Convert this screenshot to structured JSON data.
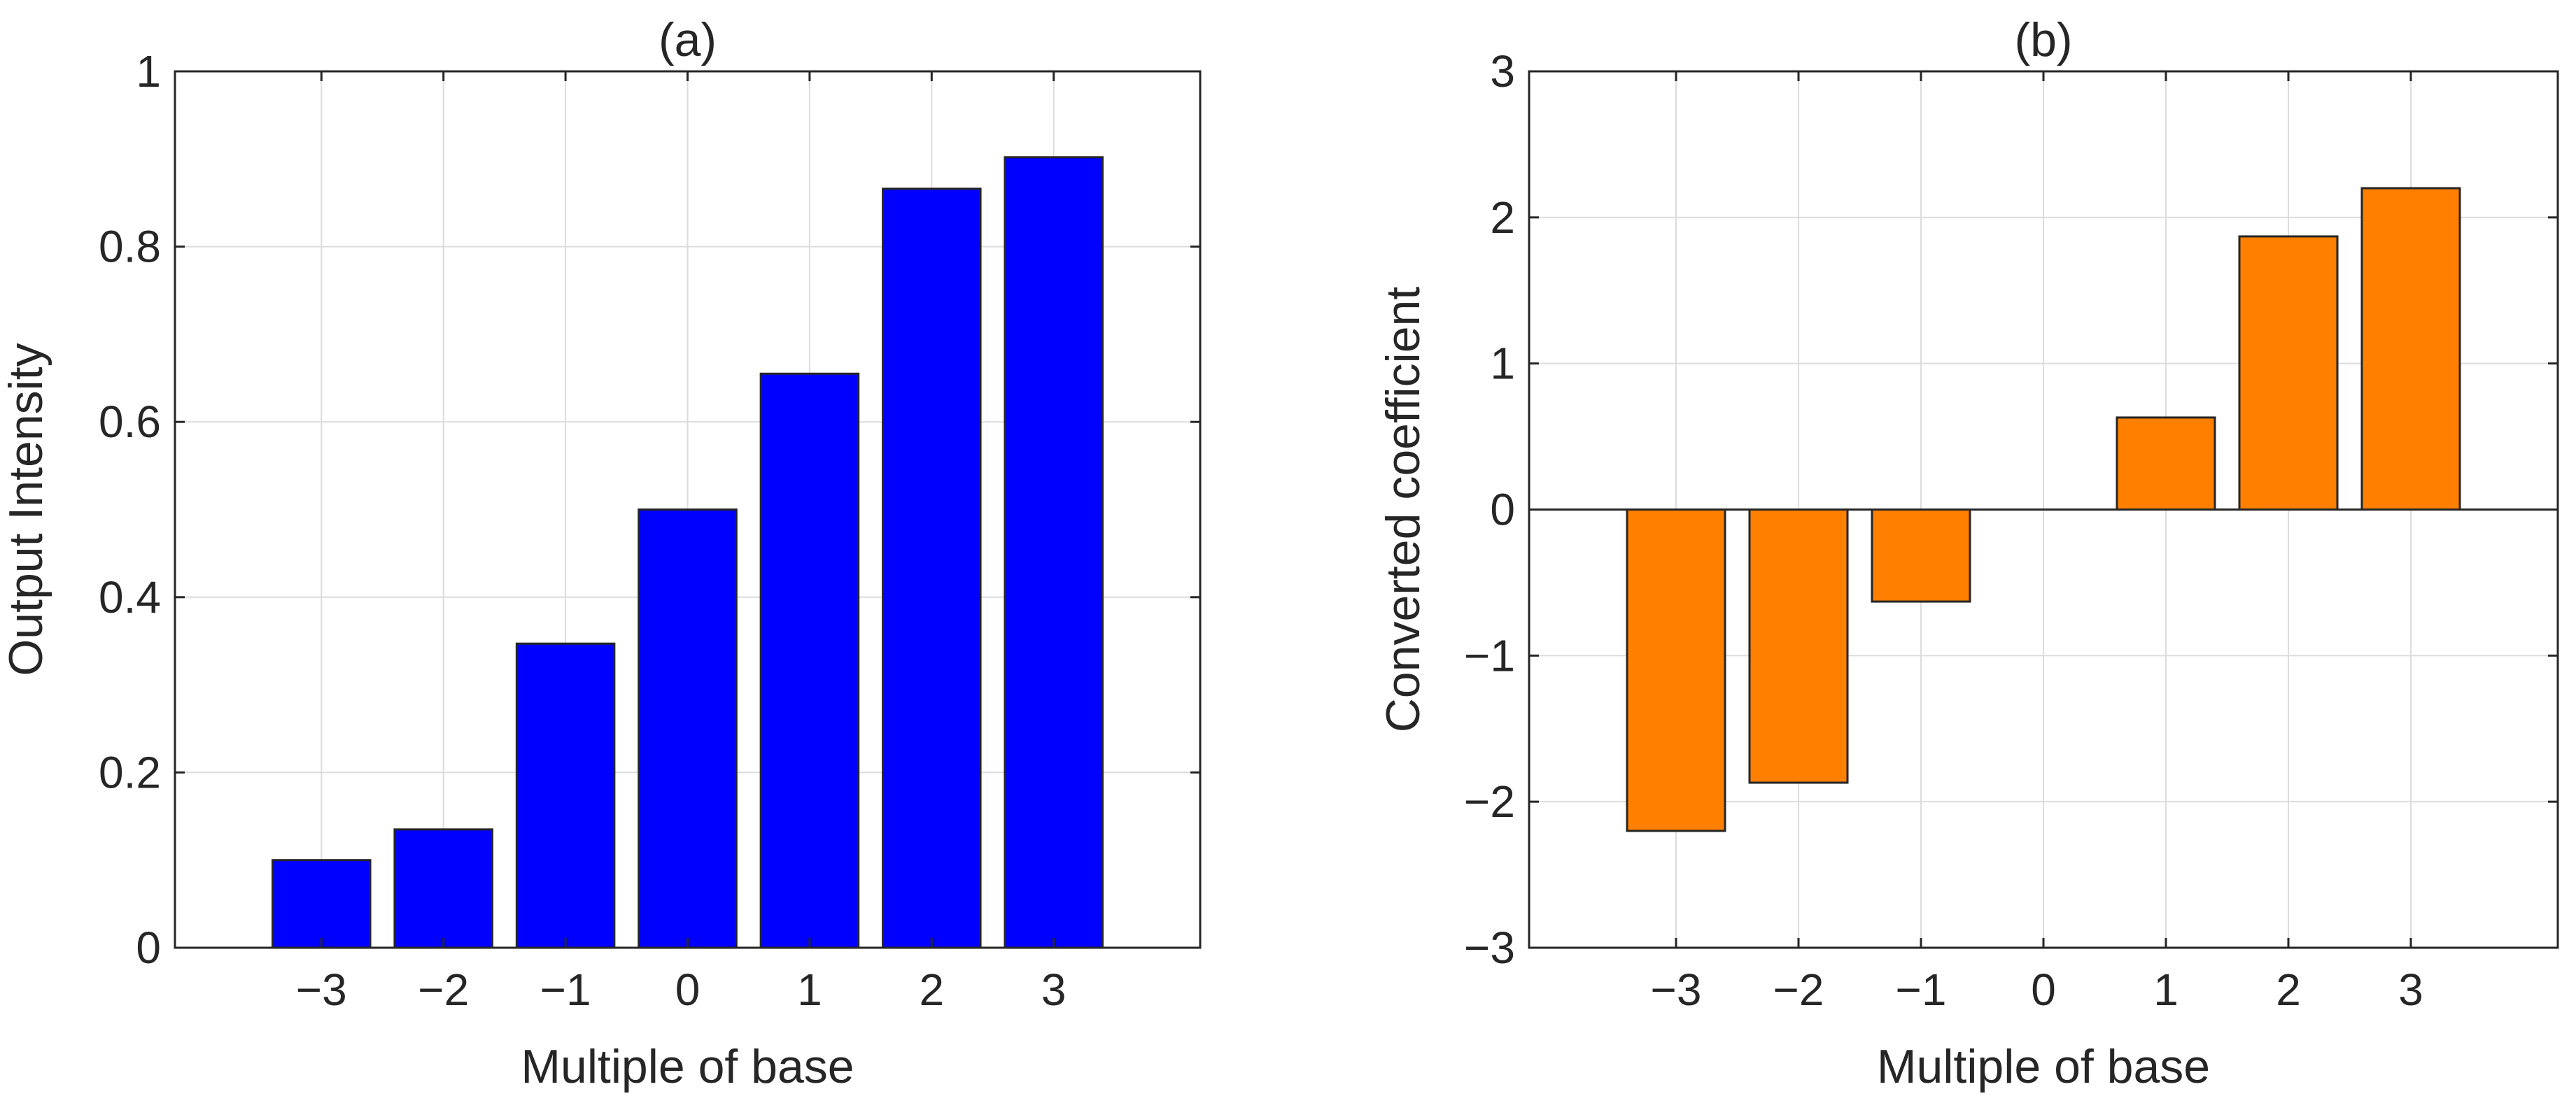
{
  "chart_data": [
    {
      "type": "bar",
      "title": "(a)",
      "xlabel": "Multiple of base",
      "ylabel": "Output Intensity",
      "categories": [
        "−3",
        "−2",
        "−1",
        "0",
        "1",
        "2",
        "3"
      ],
      "x": [
        -3,
        -2,
        -1,
        0,
        1,
        2,
        3
      ],
      "values": [
        0.1,
        0.135,
        0.347,
        0.5,
        0.655,
        0.866,
        0.902
      ],
      "xlim": [
        -4.2,
        4.2
      ],
      "ylim": [
        0,
        1
      ],
      "yticks": [
        0,
        0.2,
        0.4,
        0.6,
        0.8,
        1
      ],
      "ytick_labels": [
        "0",
        "0.2",
        "0.4",
        "0.6",
        "0.8",
        "1"
      ],
      "grid": true,
      "bar_color": "#0000ff"
    },
    {
      "type": "bar",
      "title": "(b)",
      "xlabel": "Multiple of base",
      "ylabel": "Converted coefficient",
      "categories": [
        "−3",
        "−2",
        "−1",
        "0",
        "1",
        "2",
        "3"
      ],
      "x": [
        -3,
        -2,
        -1,
        0,
        1,
        2,
        3
      ],
      "values": [
        -2.2,
        -1.87,
        -0.63,
        0,
        0.63,
        1.87,
        2.2
      ],
      "xlim": [
        -4.2,
        4.2
      ],
      "ylim": [
        -3,
        3
      ],
      "yticks": [
        -3,
        -2,
        -1,
        0,
        1,
        2,
        3
      ],
      "ytick_labels": [
        "−3",
        "−2",
        "−1",
        "0",
        "1",
        "2",
        "3"
      ],
      "grid": true,
      "bar_color": "#ff8000"
    }
  ]
}
